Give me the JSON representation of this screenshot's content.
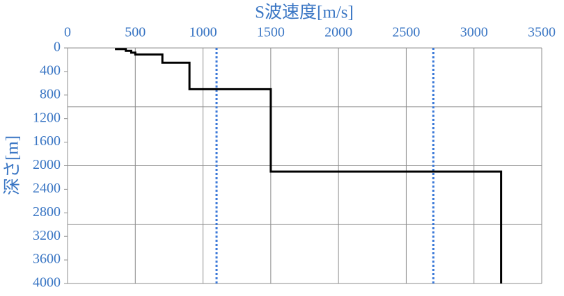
{
  "chart_data": {
    "type": "line",
    "x_label": "S波速度[m/s]",
    "y_label": "深さ[m]",
    "x": [
      350,
      430,
      430,
      470,
      470,
      500,
      500,
      700,
      700,
      900,
      900,
      1500,
      1500,
      3200,
      3200
    ],
    "values": [
      20,
      20,
      50,
      50,
      80,
      80,
      110,
      110,
      250,
      250,
      700,
      700,
      2100,
      2100,
      4000
    ],
    "color": "#000000",
    "xlim": [
      0,
      3500
    ],
    "xticks": [
      0,
      500,
      1000,
      1500,
      2000,
      2500,
      3000,
      3500
    ],
    "ylim": [
      0,
      4000
    ],
    "yticks": [
      0,
      400,
      800,
      1200,
      1600,
      2000,
      2400,
      2800,
      3200,
      3600,
      4000
    ],
    "y_inverted": true,
    "y_grid": [
      1000,
      2000,
      3000
    ],
    "reference_lines": [
      1100,
      2700
    ],
    "reference_color": "#3a78d8",
    "label_color": "#3a76c4"
  }
}
